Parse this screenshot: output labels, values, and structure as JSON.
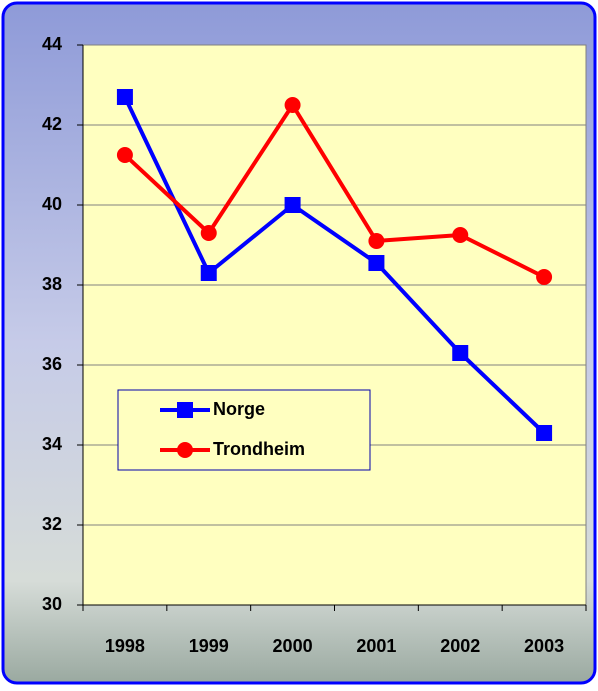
{
  "chart_data": {
    "type": "line",
    "categories": [
      "1998",
      "1999",
      "2000",
      "2001",
      "2002",
      "2003"
    ],
    "series": [
      {
        "name": "Norge",
        "color": "#0000ff",
        "marker": "square",
        "values": [
          42.7,
          38.3,
          40.0,
          38.55,
          36.3,
          34.3
        ]
      },
      {
        "name": "Trondheim",
        "color": "#ff0000",
        "marker": "circle",
        "values": [
          41.25,
          39.3,
          42.5,
          39.1,
          39.25,
          38.2
        ]
      }
    ],
    "ylim": [
      30,
      44
    ],
    "yticks": [
      30,
      32,
      34,
      36,
      38,
      40,
      42,
      44
    ],
    "grid": true,
    "legend": "center-left"
  }
}
